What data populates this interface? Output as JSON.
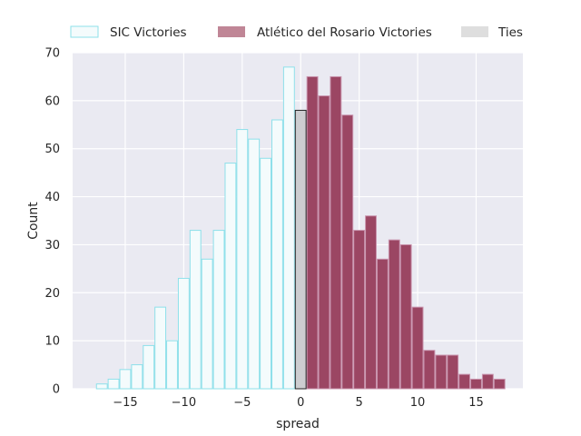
{
  "chart_data": {
    "type": "bar",
    "title": "",
    "xlabel": "spread",
    "ylabel": "Count",
    "xlim": [
      -19.5,
      19
    ],
    "ylim": [
      0,
      70
    ],
    "xticks": [
      -15,
      -10,
      -5,
      0,
      5,
      10,
      15
    ],
    "xtick_labels": [
      "−15",
      "−10",
      "−5",
      "0",
      "5",
      "10",
      "15"
    ],
    "yticks": [
      0,
      10,
      20,
      30,
      40,
      50,
      60,
      70
    ],
    "ytick_labels": [
      "0",
      "10",
      "20",
      "30",
      "40",
      "50",
      "60",
      "70"
    ],
    "bin_width": 1,
    "grid": true,
    "legend_position": "top",
    "series": [
      {
        "name": "SIC Victories",
        "color": "#f4fbfc",
        "edgecolor": "#8ee0ea",
        "x": [
          -17,
          -16,
          -15,
          -14,
          -13,
          -12,
          -11,
          -10,
          -9,
          -8,
          -7,
          -6,
          -5,
          -4,
          -3,
          -2,
          -1
        ],
        "values": [
          1,
          2,
          4,
          5,
          9,
          17,
          10,
          23,
          33,
          27,
          33,
          47,
          54,
          52,
          48,
          56,
          67
        ]
      },
      {
        "name": "Atlético del Rosario Victories",
        "color": "#9b4663",
        "edgecolor": "#c994ae",
        "x": [
          1,
          2,
          3,
          4,
          5,
          6,
          7,
          8,
          9,
          10,
          11,
          12,
          13,
          14,
          15,
          16,
          17
        ],
        "values": [
          65,
          61,
          65,
          57,
          33,
          36,
          27,
          31,
          30,
          17,
          8,
          7,
          7,
          3,
          2,
          3,
          2
        ]
      },
      {
        "name": "Ties",
        "color": "#cdcdd0",
        "edgecolor": "#222222",
        "x": [
          0
        ],
        "values": [
          58
        ]
      }
    ]
  }
}
